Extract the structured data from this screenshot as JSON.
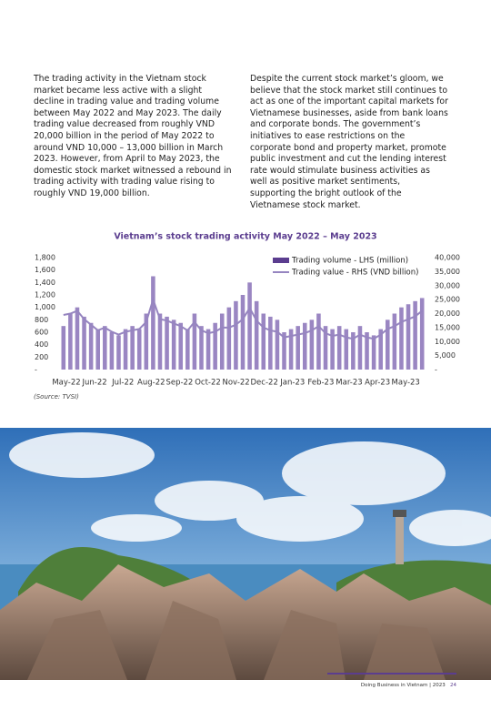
{
  "body": {
    "left": "The trading activity in the Vietnam stock market became less active with a slight decline in trading value and trading volume between May 2022 and May 2023. The daily trading value decreased from roughly VND 20,000 billion in the period of May 2022 to around VND 10,000 – 13,000 billion in March 2023. However, from April to May 2023, the domestic stock market witnessed a rebound in trading activity with trading value rising to roughly VND 19,000 billion.",
    "right": "Despite the current stock market’s gloom, we believe that the stock market still continues to act as one of the important capital markets for Vietnamese businesses, aside from bank loans and corporate bonds. The government’s initiatives to ease restrictions on the corporate bond and property market, promote public investment and cut the lending interest rate would stimulate business activities as well as positive market sentiments, supporting the bright outlook of the Vietnamese stock market."
  },
  "chart_data": {
    "type": "bar-line",
    "title": "Vietnam’s stock trading activity May 2022 – May 2023",
    "xtick_labels": [
      "May-22",
      "Jun-22",
      "Jul-22",
      "Aug-22",
      "Sep-22",
      "Oct-22",
      "Nov-22",
      "Dec-22",
      "Jan-23",
      "Feb-23",
      "Mar-23",
      "Apr-23",
      "May-23"
    ],
    "ylim": [
      0,
      1800
    ],
    "yticks": [
      {
        "value": 0,
        "label": "-"
      },
      200,
      400,
      600,
      800,
      {
        "value": 1000,
        "label": "1,000"
      },
      {
        "value": 1200,
        "label": "1,200"
      },
      {
        "value": 1400,
        "label": "1,400"
      },
      {
        "value": 1600,
        "label": "1,600"
      },
      {
        "value": 1800,
        "label": "1,800"
      }
    ],
    "y2lim": [
      0,
      40000
    ],
    "y2ticks": [
      {
        "value": 0,
        "label": "-"
      },
      {
        "value": 5000,
        "label": "5,000"
      },
      {
        "value": 10000,
        "label": "10,000"
      },
      {
        "value": 15000,
        "label": "15,000"
      },
      {
        "value": 20000,
        "label": "20,000"
      },
      {
        "value": 25000,
        "label": "25,000"
      },
      {
        "value": 30000,
        "label": "30,000"
      },
      {
        "value": 35000,
        "label": "35,000"
      },
      {
        "value": 40000,
        "label": "40,000"
      }
    ],
    "legend_position": "top-right",
    "series": [
      {
        "name": "Trading volume  - LHS (million)",
        "type": "bar",
        "color": "#9a86c2",
        "legend_color": "#5b3d8f",
        "values": [
          700,
          900,
          1000,
          850,
          750,
          650,
          700,
          600,
          550,
          650,
          700,
          650,
          900,
          1500,
          900,
          850,
          800,
          750,
          650,
          900,
          700,
          650,
          750,
          900,
          1000,
          1100,
          1200,
          1400,
          1100,
          900,
          850,
          800,
          600,
          650,
          700,
          750,
          800,
          900,
          700,
          650,
          700,
          650,
          600,
          700,
          600,
          550,
          650,
          800,
          900,
          1000,
          1050,
          1100,
          1150
        ]
      },
      {
        "name": "Trading value - RHS (VND billion)",
        "type": "line",
        "axis": "y2",
        "color": "#9685c0",
        "values": [
          19500,
          20000,
          21000,
          18000,
          16000,
          14000,
          15000,
          13500,
          12500,
          13500,
          14000,
          14500,
          17000,
          25000,
          18000,
          17500,
          16500,
          15500,
          14000,
          17000,
          14000,
          13000,
          13500,
          15000,
          15000,
          16000,
          18000,
          22000,
          17500,
          15000,
          14000,
          13500,
          11500,
          12000,
          12500,
          13000,
          14000,
          15500,
          13000,
          12000,
          12500,
          11500,
          11000,
          12500,
          11500,
          11000,
          12500,
          14500,
          15500,
          17000,
          18000,
          19000,
          21000
        ]
      }
    ]
  },
  "source": "(Source: TVSI)",
  "footer": {
    "text": "Doing Business in Vietnam | 2023",
    "page": "24"
  }
}
